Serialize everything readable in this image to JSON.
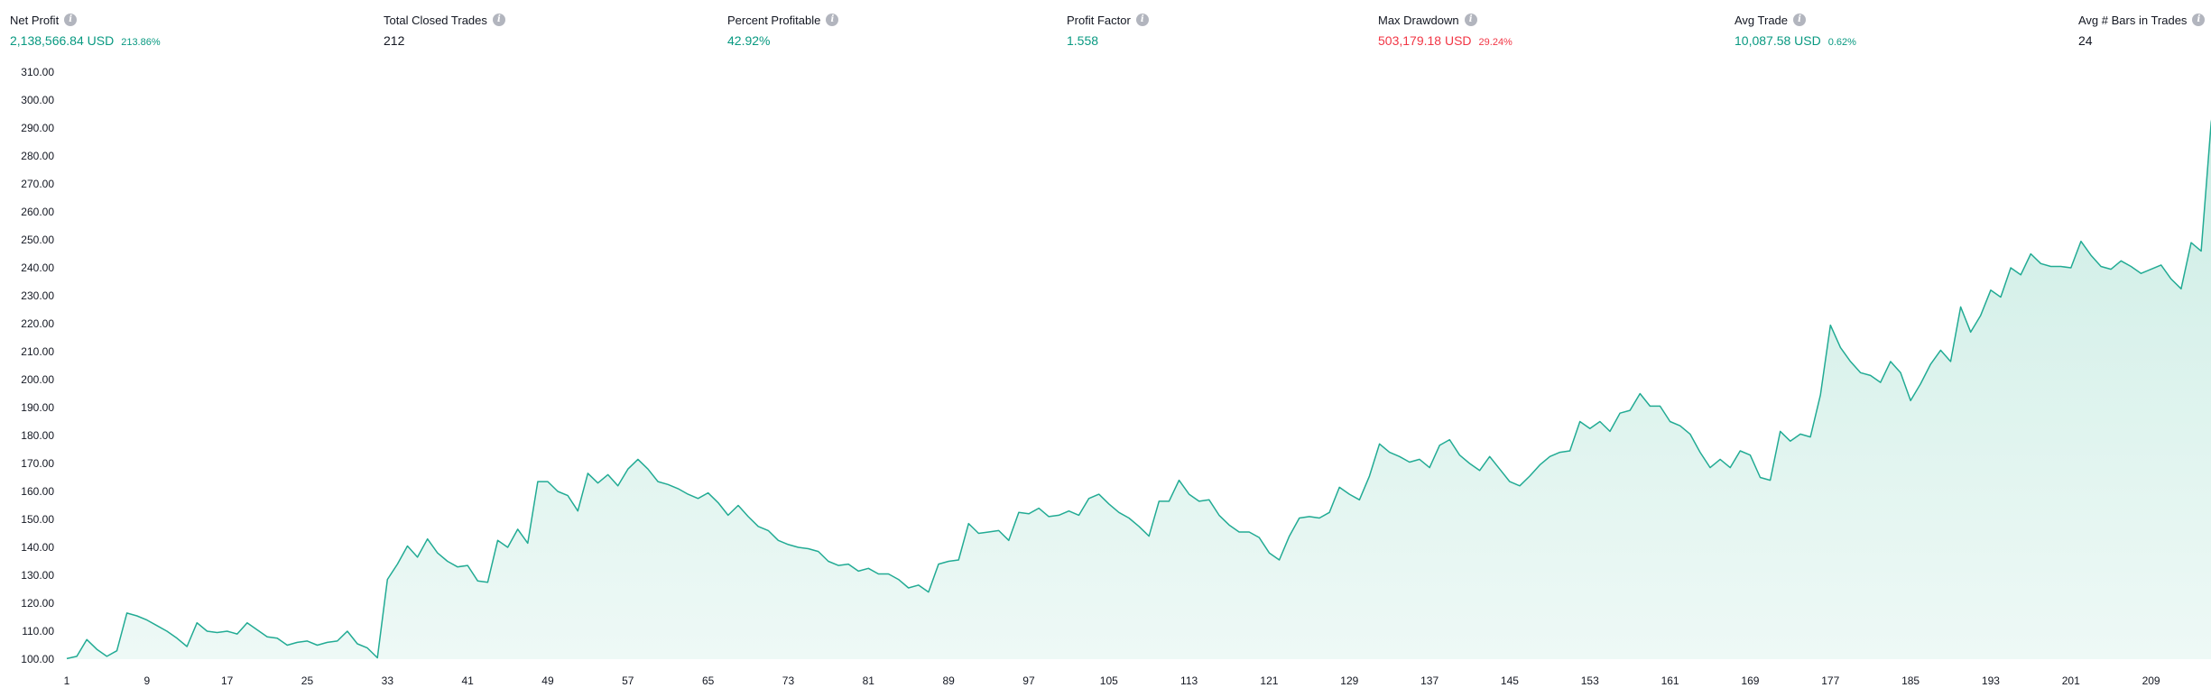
{
  "stats": [
    {
      "label": "Net Profit",
      "value": "2,138,566.84 USD",
      "pct": "213.86%",
      "tone": "pos"
    },
    {
      "label": "Total Closed Trades",
      "value": "212",
      "pct": "",
      "tone": "neutral"
    },
    {
      "label": "Percent Profitable",
      "value": "42.92%",
      "pct": "",
      "tone": "pos"
    },
    {
      "label": "Profit Factor",
      "value": "1.558",
      "pct": "",
      "tone": "pos"
    },
    {
      "label": "Max Drawdown",
      "value": "503,179.18 USD",
      "pct": "29.24%",
      "tone": "neg"
    },
    {
      "label": "Avg Trade",
      "value": "10,087.58 USD",
      "pct": "0.62%",
      "tone": "pos"
    },
    {
      "label": "Avg # Bars in Trades",
      "value": "24",
      "pct": "",
      "tone": "neutral"
    }
  ],
  "colors": {
    "line": "#22ab94",
    "fill_top": "#c9ece3",
    "fill_bottom": "#eef9f6",
    "positive": "#089981",
    "negative": "#f23645"
  },
  "chart_data": {
    "type": "area",
    "ylim": [
      100,
      310
    ],
    "yticks": [
      100,
      110,
      120,
      130,
      140,
      150,
      160,
      170,
      180,
      190,
      200,
      210,
      220,
      230,
      240,
      250,
      260,
      270,
      280,
      290,
      300,
      310
    ],
    "xticks": [
      1,
      9,
      17,
      25,
      33,
      41,
      49,
      57,
      65,
      73,
      81,
      89,
      97,
      105,
      113,
      121,
      129,
      137,
      145,
      153,
      161,
      169,
      177,
      185,
      193,
      201,
      209
    ],
    "xlim": [
      1,
      213
    ],
    "points": [
      [
        1,
        100.2
      ],
      [
        2,
        101
      ],
      [
        3,
        107
      ],
      [
        4,
        103.5
      ],
      [
        5,
        101
      ],
      [
        6,
        103
      ],
      [
        7,
        116.5
      ],
      [
        8,
        115.5
      ],
      [
        9,
        114
      ],
      [
        10,
        112
      ],
      [
        11,
        110
      ],
      [
        12,
        107.5
      ],
      [
        13,
        104.5
      ],
      [
        14,
        113
      ],
      [
        15,
        110
      ],
      [
        16,
        109.5
      ],
      [
        17,
        110
      ],
      [
        18,
        109
      ],
      [
        19,
        113
      ],
      [
        20,
        110.5
      ],
      [
        21,
        108
      ],
      [
        22,
        107.5
      ],
      [
        23,
        105
      ],
      [
        24,
        106
      ],
      [
        25,
        106.5
      ],
      [
        26,
        105
      ],
      [
        27,
        106
      ],
      [
        28,
        106.5
      ],
      [
        29,
        110
      ],
      [
        30,
        105.5
      ],
      [
        31,
        104
      ],
      [
        32,
        100.5
      ],
      [
        33,
        128.5
      ],
      [
        34,
        134
      ],
      [
        35,
        140.5
      ],
      [
        36,
        136.5
      ],
      [
        37,
        143
      ],
      [
        38,
        138
      ],
      [
        39,
        135
      ],
      [
        40,
        133
      ],
      [
        41,
        133.5
      ],
      [
        42,
        128
      ],
      [
        43,
        127.5
      ],
      [
        44,
        142.5
      ],
      [
        45,
        140
      ],
      [
        46,
        146.5
      ],
      [
        47,
        141.5
      ],
      [
        48,
        163.5
      ],
      [
        49,
        163.5
      ],
      [
        50,
        160
      ],
      [
        51,
        158.5
      ],
      [
        52,
        153
      ],
      [
        53,
        166.5
      ],
      [
        54,
        163
      ],
      [
        55,
        166
      ],
      [
        56,
        162
      ],
      [
        57,
        168
      ],
      [
        58,
        171.5
      ],
      [
        59,
        168
      ],
      [
        60,
        163.5
      ],
      [
        61,
        162.5
      ],
      [
        62,
        161
      ],
      [
        63,
        159
      ],
      [
        64,
        157.5
      ],
      [
        65,
        159.5
      ],
      [
        66,
        156
      ],
      [
        67,
        151.5
      ],
      [
        68,
        155
      ],
      [
        69,
        151
      ],
      [
        70,
        147.5
      ],
      [
        71,
        146
      ],
      [
        72,
        142.5
      ],
      [
        73,
        141
      ],
      [
        74,
        140
      ],
      [
        75,
        139.5
      ],
      [
        76,
        138.5
      ],
      [
        77,
        135
      ],
      [
        78,
        133.5
      ],
      [
        79,
        134
      ],
      [
        80,
        131.5
      ],
      [
        81,
        132.5
      ],
      [
        82,
        130.5
      ],
      [
        83,
        130.5
      ],
      [
        84,
        128.5
      ],
      [
        85,
        125.5
      ],
      [
        86,
        126.5
      ],
      [
        87,
        124
      ],
      [
        88,
        134
      ],
      [
        89,
        135
      ],
      [
        90,
        135.5
      ],
      [
        91,
        148.5
      ],
      [
        92,
        145
      ],
      [
        93,
        145.5
      ],
      [
        94,
        146
      ],
      [
        95,
        142.5
      ],
      [
        96,
        152.5
      ],
      [
        97,
        152
      ],
      [
        98,
        154
      ],
      [
        99,
        151
      ],
      [
        100,
        151.5
      ],
      [
        101,
        153
      ],
      [
        102,
        151.5
      ],
      [
        103,
        157.5
      ],
      [
        104,
        159
      ],
      [
        105,
        155.5
      ],
      [
        106,
        152.5
      ],
      [
        107,
        150.5
      ],
      [
        108,
        147.5
      ],
      [
        109,
        144
      ],
      [
        110,
        156.5
      ],
      [
        111,
        156.5
      ],
      [
        112,
        164
      ],
      [
        113,
        159
      ],
      [
        114,
        156.5
      ],
      [
        115,
        157
      ],
      [
        116,
        151.5
      ],
      [
        117,
        148
      ],
      [
        118,
        145.5
      ],
      [
        119,
        145.5
      ],
      [
        120,
        143.5
      ],
      [
        121,
        138
      ],
      [
        122,
        135.5
      ],
      [
        123,
        144
      ],
      [
        124,
        150.5
      ],
      [
        125,
        151
      ],
      [
        126,
        150.5
      ],
      [
        127,
        152.5
      ],
      [
        128,
        161.5
      ],
      [
        129,
        159
      ],
      [
        130,
        157
      ],
      [
        131,
        165.5
      ],
      [
        132,
        177
      ],
      [
        133,
        174
      ],
      [
        134,
        172.5
      ],
      [
        135,
        170.5
      ],
      [
        136,
        171.5
      ],
      [
        137,
        168.5
      ],
      [
        138,
        176.5
      ],
      [
        139,
        178.5
      ],
      [
        140,
        173
      ],
      [
        141,
        170
      ],
      [
        142,
        167.5
      ],
      [
        143,
        172.5
      ],
      [
        144,
        168
      ],
      [
        145,
        163.5
      ],
      [
        146,
        162
      ],
      [
        147,
        165.5
      ],
      [
        148,
        169.5
      ],
      [
        149,
        172.5
      ],
      [
        150,
        174
      ],
      [
        151,
        174.5
      ],
      [
        152,
        185
      ],
      [
        153,
        182.5
      ],
      [
        154,
        185
      ],
      [
        155,
        181.5
      ],
      [
        156,
        188
      ],
      [
        157,
        189
      ],
      [
        158,
        195
      ],
      [
        159,
        190.5
      ],
      [
        160,
        190.5
      ],
      [
        161,
        185
      ],
      [
        162,
        183.5
      ],
      [
        163,
        180.5
      ],
      [
        164,
        174
      ],
      [
        165,
        168.5
      ],
      [
        166,
        171.5
      ],
      [
        167,
        168.5
      ],
      [
        168,
        174.5
      ],
      [
        169,
        173
      ],
      [
        170,
        165
      ],
      [
        171,
        164
      ],
      [
        172,
        181.5
      ],
      [
        173,
        178
      ],
      [
        174,
        180.5
      ],
      [
        175,
        179.5
      ],
      [
        176,
        194.5
      ],
      [
        177,
        219.5
      ],
      [
        178,
        211.5
      ],
      [
        179,
        206.5
      ],
      [
        180,
        202.5
      ],
      [
        181,
        201.5
      ],
      [
        182,
        199
      ],
      [
        183,
        206.5
      ],
      [
        184,
        202.5
      ],
      [
        185,
        192.5
      ],
      [
        186,
        198.5
      ],
      [
        187,
        205.5
      ],
      [
        188,
        210.5
      ],
      [
        189,
        206.5
      ],
      [
        190,
        226
      ],
      [
        191,
        217
      ],
      [
        192,
        223
      ],
      [
        193,
        232
      ],
      [
        194,
        229.5
      ],
      [
        195,
        240
      ],
      [
        196,
        237.5
      ],
      [
        197,
        245
      ],
      [
        198,
        241.5
      ],
      [
        199,
        240.5
      ],
      [
        200,
        240.5
      ],
      [
        201,
        240
      ],
      [
        202,
        249.5
      ],
      [
        203,
        244.5
      ],
      [
        204,
        240.5
      ],
      [
        205,
        239.5
      ],
      [
        206,
        242.5
      ],
      [
        207,
        240.5
      ],
      [
        208,
        238
      ],
      [
        209,
        239.5
      ],
      [
        210,
        241
      ],
      [
        211,
        236
      ],
      [
        212,
        232.5
      ],
      [
        213,
        249
      ],
      [
        214,
        246
      ],
      [
        215,
        292
      ],
      [
        216,
        313
      ]
    ]
  }
}
